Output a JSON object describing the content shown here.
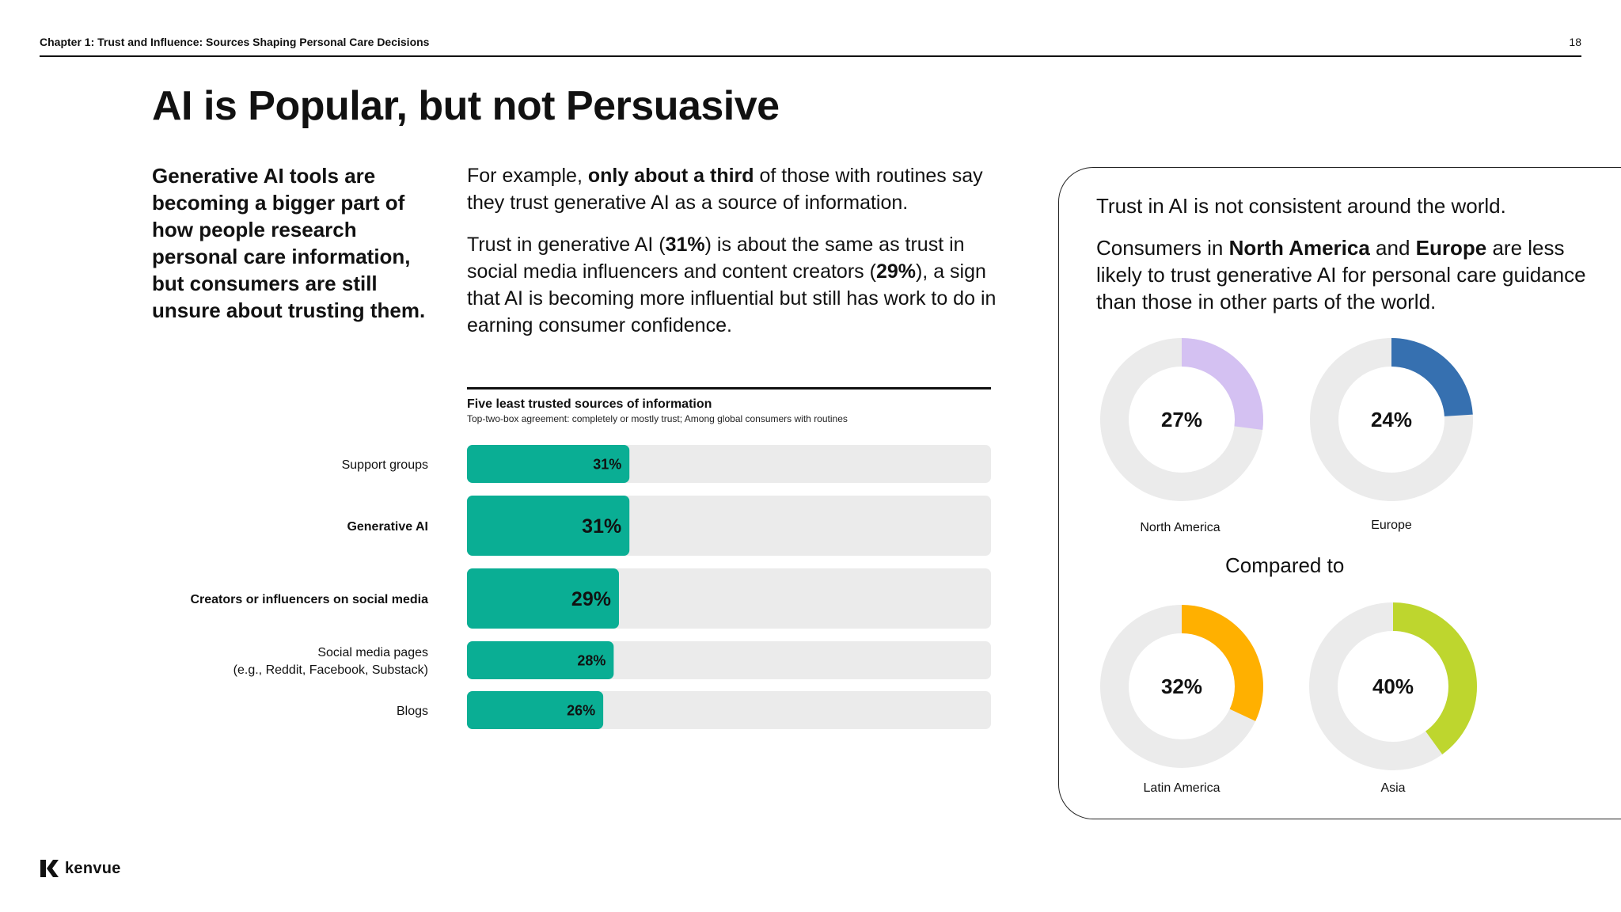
{
  "header": {
    "chapter": "Chapter 1: Trust and Influence: Sources Shaping Personal Care Decisions",
    "page_number": "18"
  },
  "title": "AI is Popular, but not Persuasive",
  "intro": "Generative AI tools are becoming a bigger part of how people research personal care information, but consumers are still unsure about trusting them.",
  "paragraph1": {
    "pre": "For example, ",
    "bold": "only about a third",
    "post": " of those with routines say they trust generative AI as a source of information."
  },
  "paragraph2": {
    "t1": "Trust in generative AI (",
    "b1": "31%",
    "t2": ") is about the same as trust in social media influencers and content creators (",
    "b2": "29%",
    "t3": "), a sign that AI is becoming more influential but still has work to do in earning consumer confidence."
  },
  "panel": {
    "line1": "Trust in AI is not consistent around the world.",
    "line2": {
      "t1": "Consumers in ",
      "b1": "North America",
      "t2": " and ",
      "b2": "Europe",
      "t3": " are less likely to trust generative AI for personal care guidance than those in other parts of the world."
    },
    "compared_to": "Compared to"
  },
  "brand": {
    "name": "kenvue"
  },
  "colors": {
    "bar": "#0AAE94",
    "track": "#EBEBEB",
    "donut_track": "#EBEBEB",
    "north_america": "#D4C1F2",
    "europe": "#3670B0",
    "latin_america": "#FFB000",
    "asia": "#BED62E"
  },
  "chart_data": [
    {
      "type": "bar",
      "title": "Five least trusted sources of information",
      "subtitle": "Top-two-box agreement: completely or mostly trust; Among global consumers with routines",
      "categories": [
        "Support groups",
        "Generative AI",
        "Creators or influencers on social media",
        "Social media pages\n(e.g., Reddit, Facebook, Substack)",
        "Blogs"
      ],
      "highlighted": [
        false,
        true,
        true,
        false,
        false
      ],
      "values": [
        31,
        31,
        29,
        28,
        26
      ],
      "labels": [
        "31%",
        "31%",
        "29%",
        "28%",
        "26%"
      ],
      "value_unit": "%",
      "xlim": [
        0,
        100
      ]
    },
    {
      "type": "pie",
      "style": "donut",
      "categories": [
        "North America",
        "Europe",
        "Latin America",
        "Asia"
      ],
      "values": [
        27,
        24,
        32,
        40
      ],
      "labels": [
        "27%",
        "24%",
        "32%",
        "40%"
      ]
    }
  ]
}
